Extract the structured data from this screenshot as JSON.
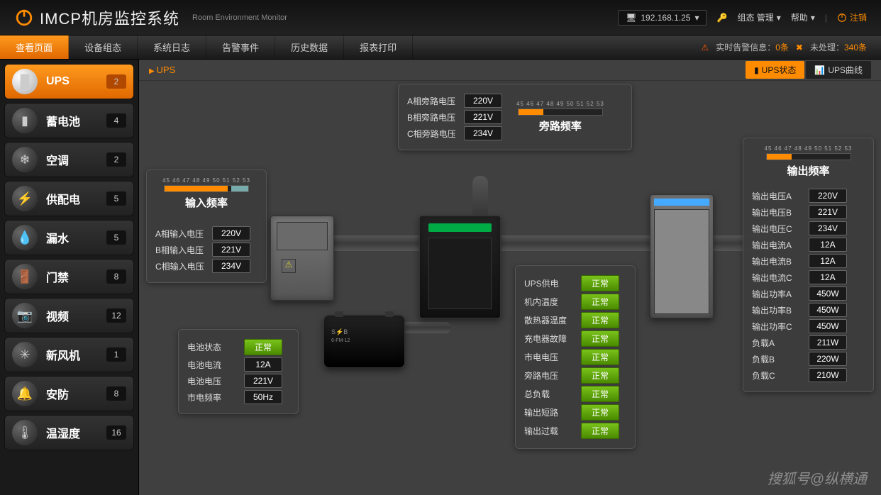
{
  "header": {
    "title": "IMCP机房监控系统",
    "subtitle": "Room Environment Monitor",
    "ip": "192.168.1.25",
    "org_mgmt": "组态 管理",
    "help": "帮助",
    "logout": "注销"
  },
  "nav": {
    "items": [
      "查看页面",
      "设备组态",
      "系统日志",
      "告警事件",
      "历史数据",
      "报表打印"
    ],
    "active_index": 0,
    "alarm_label": "实时告警信息：",
    "alarm_count": "0条",
    "pending_label": "未处理：",
    "pending_count": "340条"
  },
  "sidebar": {
    "items": [
      {
        "label": "UPS",
        "badge": "2",
        "active": true,
        "icon": "ups"
      },
      {
        "label": "蓄电池",
        "badge": "4",
        "icon": "battery"
      },
      {
        "label": "空调",
        "badge": "2",
        "icon": "ac"
      },
      {
        "label": "供配电",
        "badge": "5",
        "icon": "power"
      },
      {
        "label": "漏水",
        "badge": "5",
        "icon": "water"
      },
      {
        "label": "门禁",
        "badge": "8",
        "icon": "door"
      },
      {
        "label": "视频",
        "badge": "12",
        "icon": "video"
      },
      {
        "label": "新风机",
        "badge": "1",
        "icon": "fan"
      },
      {
        "label": "安防",
        "badge": "8",
        "icon": "alarm"
      },
      {
        "label": "温湿度",
        "badge": "16",
        "icon": "temp"
      }
    ]
  },
  "content": {
    "breadcrumb": "UPS",
    "tabs": [
      {
        "label": "UPS状态",
        "active": true,
        "icon": "status"
      },
      {
        "label": "UPS曲线",
        "icon": "chart"
      }
    ]
  },
  "gauges": {
    "ticks": "45 46 47 48 49 50 51 52 53",
    "input": {
      "title": "输入频率",
      "fill_pct": 75
    },
    "bypass": {
      "title": "旁路频率",
      "fill_pct": 30
    },
    "output": {
      "title": "输出频率",
      "fill_pct": 30
    }
  },
  "bypass_voltage": {
    "rows": [
      {
        "label": "A相旁路电压",
        "value": "220V"
      },
      {
        "label": "B相旁路电压",
        "value": "221V"
      },
      {
        "label": "C相旁路电压",
        "value": "234V"
      }
    ]
  },
  "input_voltage": {
    "rows": [
      {
        "label": "A相输入电压",
        "value": "220V"
      },
      {
        "label": "B相输入电压",
        "value": "221V"
      },
      {
        "label": "C相输入电压",
        "value": "234V"
      }
    ]
  },
  "battery": {
    "rows": [
      {
        "label": "电池状态",
        "value": "正常",
        "status": true
      },
      {
        "label": "电池电流",
        "value": "12A"
      },
      {
        "label": "电池电压",
        "value": "221V"
      },
      {
        "label": "市电频率",
        "value": "50Hz"
      }
    ]
  },
  "ups_status": {
    "rows": [
      {
        "label": "UPS供电",
        "value": "正常"
      },
      {
        "label": "机内温度",
        "value": "正常"
      },
      {
        "label": "散热器温度",
        "value": "正常"
      },
      {
        "label": "充电器故障",
        "value": "正常"
      },
      {
        "label": "市电电压",
        "value": "正常"
      },
      {
        "label": "旁路电压",
        "value": "正常"
      },
      {
        "label": "总负载",
        "value": "正常"
      },
      {
        "label": "输出短路",
        "value": "正常"
      },
      {
        "label": "输出过载",
        "value": "正常"
      }
    ]
  },
  "output": {
    "rows": [
      {
        "label": "输出电压A",
        "value": "220V"
      },
      {
        "label": "输出电压B",
        "value": "221V"
      },
      {
        "label": "输出电压C",
        "value": "234V"
      },
      {
        "label": "输出电流A",
        "value": "12A"
      },
      {
        "label": "输出电流B",
        "value": "12A"
      },
      {
        "label": "输出电流C",
        "value": "12A"
      },
      {
        "label": "输出功率A",
        "value": "450W"
      },
      {
        "label": "输出功率B",
        "value": "450W"
      },
      {
        "label": "输出功率C",
        "value": "450W"
      },
      {
        "label": "负载A",
        "value": "211W"
      },
      {
        "label": "负载B",
        "value": "220W"
      },
      {
        "label": "负载C",
        "value": "210W"
      }
    ]
  },
  "watermark": "搜狐号@纵横通",
  "colors": {
    "accent": "#ff8c00",
    "ok": "#5fae00",
    "bg": "#404040",
    "panel": "#3c3c3c"
  }
}
